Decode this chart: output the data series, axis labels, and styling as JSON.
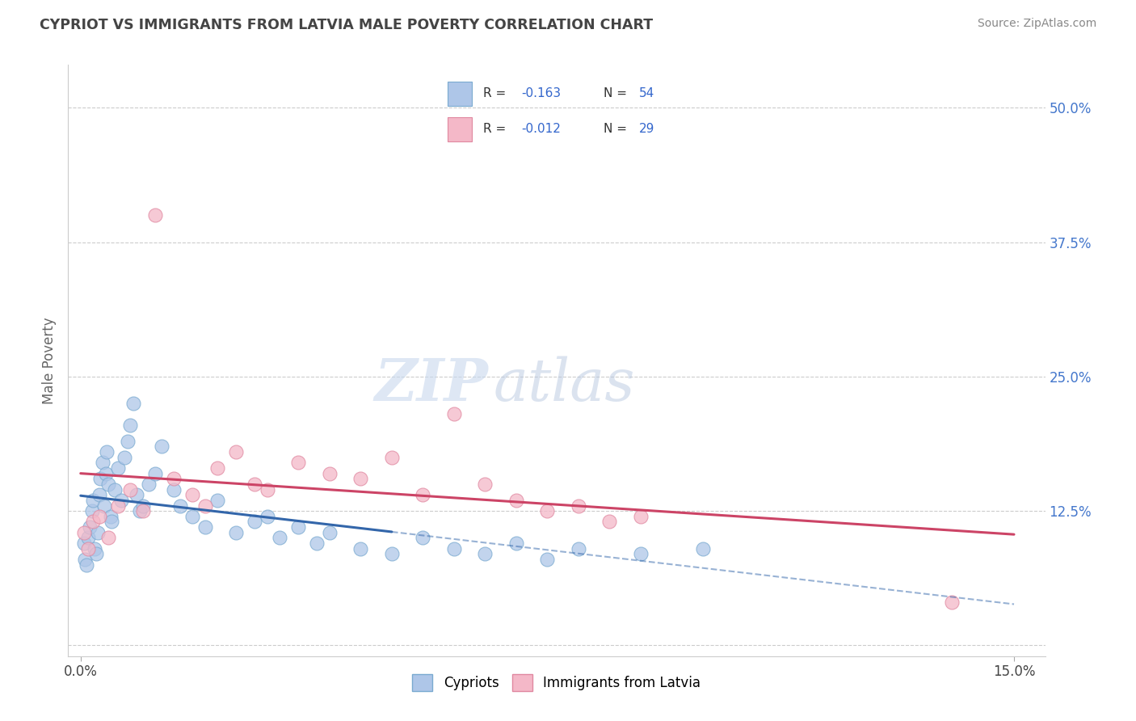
{
  "title": "CYPRIOT VS IMMIGRANTS FROM LATVIA MALE POVERTY CORRELATION CHART",
  "source": "Source: ZipAtlas.com",
  "ylabel": "Male Poverty",
  "xlim": [
    -0.2,
    15.5
  ],
  "ylim": [
    -1.0,
    54.0
  ],
  "xticks": [
    0.0,
    15.0
  ],
  "xtick_labels": [
    "0.0%",
    "15.0%"
  ],
  "ytick_positions": [
    0,
    12.5,
    25.0,
    37.5,
    50.0
  ],
  "ytick_labels": [
    "",
    "12.5%",
    "25.0%",
    "37.5%",
    "50.0%"
  ],
  "grid_color": "#cccccc",
  "background_color": "#ffffff",
  "cypriot_color": "#aec6e8",
  "cypriot_edge_color": "#7aaad0",
  "latvia_color": "#f4b8c8",
  "latvia_edge_color": "#e088a0",
  "legend_label_1": "Cypriots",
  "legend_label_2": "Immigrants from Latvia",
  "cypriot_line_color": "#3366aa",
  "latvia_line_color": "#cc4466",
  "watermark_zip": "ZIP",
  "watermark_atlas": "atlas",
  "cypriot_x": [
    0.05,
    0.07,
    0.1,
    0.12,
    0.15,
    0.18,
    0.2,
    0.22,
    0.25,
    0.28,
    0.3,
    0.32,
    0.35,
    0.38,
    0.4,
    0.42,
    0.45,
    0.48,
    0.5,
    0.55,
    0.6,
    0.65,
    0.7,
    0.75,
    0.8,
    0.85,
    0.9,
    0.95,
    1.0,
    1.1,
    1.2,
    1.3,
    1.5,
    1.6,
    1.8,
    2.0,
    2.2,
    2.5,
    2.8,
    3.0,
    3.2,
    3.5,
    3.8,
    4.0,
    4.5,
    5.0,
    5.5,
    6.0,
    6.5,
    7.0,
    7.5,
    8.0,
    9.0,
    10.0
  ],
  "cypriot_y": [
    9.5,
    8.0,
    7.5,
    10.0,
    11.0,
    12.5,
    13.5,
    9.0,
    8.5,
    10.5,
    14.0,
    15.5,
    17.0,
    13.0,
    16.0,
    18.0,
    15.0,
    12.0,
    11.5,
    14.5,
    16.5,
    13.5,
    17.5,
    19.0,
    20.5,
    22.5,
    14.0,
    12.5,
    13.0,
    15.0,
    16.0,
    18.5,
    14.5,
    13.0,
    12.0,
    11.0,
    13.5,
    10.5,
    11.5,
    12.0,
    10.0,
    11.0,
    9.5,
    10.5,
    9.0,
    8.5,
    10.0,
    9.0,
    8.5,
    9.5,
    8.0,
    9.0,
    8.5,
    9.0
  ],
  "latvia_x": [
    0.05,
    0.12,
    0.2,
    0.3,
    0.45,
    0.6,
    0.8,
    1.0,
    1.2,
    1.5,
    1.8,
    2.0,
    2.2,
    2.5,
    2.8,
    3.0,
    3.5,
    4.0,
    4.5,
    5.0,
    5.5,
    6.0,
    6.5,
    7.0,
    7.5,
    8.0,
    8.5,
    9.0,
    14.0
  ],
  "latvia_y": [
    10.5,
    9.0,
    11.5,
    12.0,
    10.0,
    13.0,
    14.5,
    12.5,
    40.0,
    15.5,
    14.0,
    13.0,
    16.5,
    18.0,
    15.0,
    14.5,
    17.0,
    16.0,
    15.5,
    17.5,
    14.0,
    21.5,
    15.0,
    13.5,
    12.5,
    13.0,
    11.5,
    12.0,
    4.0
  ],
  "solid_line_end_x": 5.0,
  "line_x_max": 15.0
}
